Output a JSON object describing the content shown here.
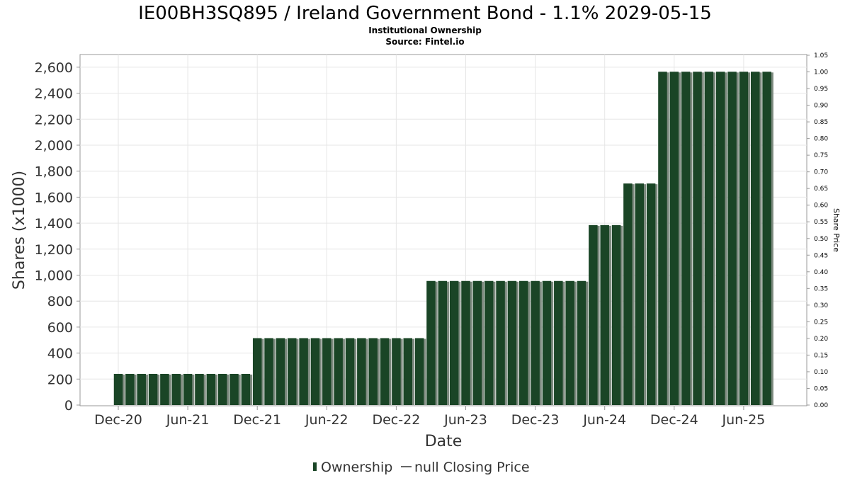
{
  "chart_data": {
    "type": "bar",
    "title": "IE00BH3SQ895 / Ireland Government Bond - 1.1% 2029-05-15",
    "subtitle_line1": "Institutional Ownership",
    "subtitle_line2": "Source: Fintel.io",
    "xlabel": "Date",
    "ylabel": "Shares (x1000)",
    "y2label": "Share Price",
    "ylim": [
      0,
      2700
    ],
    "y2lim": [
      0,
      1.05
    ],
    "y_ticks": [
      "0",
      "200",
      "400",
      "600",
      "800",
      "1,000",
      "1,200",
      "1,400",
      "1,600",
      "1,800",
      "2,000",
      "2,200",
      "2,400",
      "2,600"
    ],
    "y2_ticks": [
      "0.00",
      "0.05",
      "0.10",
      "0.15",
      "0.20",
      "0.25",
      "0.30",
      "0.35",
      "0.40",
      "0.45",
      "0.50",
      "0.55",
      "0.60",
      "0.65",
      "0.70",
      "0.75",
      "0.80",
      "0.85",
      "0.90",
      "0.95",
      "1.00",
      "1.05"
    ],
    "x_ticks": [
      "Dec-20",
      "Jun-21",
      "Dec-21",
      "Jun-22",
      "Dec-22",
      "Jun-23",
      "Dec-23",
      "Jun-24",
      "Dec-24",
      "Jun-25"
    ],
    "grid": true,
    "legend_position": "bottom-center",
    "series": [
      {
        "name": "Ownership",
        "color": "#1a4526",
        "x": [
          "2020-12-01",
          "2021-01-01",
          "2021-02-01",
          "2021-03-01",
          "2021-04-01",
          "2021-05-01",
          "2021-06-01",
          "2021-07-01",
          "2021-08-01",
          "2021-09-01",
          "2021-10-01",
          "2021-11-01",
          "2021-12-01",
          "2022-01-01",
          "2022-02-01",
          "2022-03-01",
          "2022-04-01",
          "2022-05-01",
          "2022-06-01",
          "2022-07-01",
          "2022-08-01",
          "2022-09-01",
          "2022-10-01",
          "2022-11-01",
          "2022-12-01",
          "2023-01-01",
          "2023-02-01",
          "2023-03-01",
          "2023-04-01",
          "2023-05-01",
          "2023-06-01",
          "2023-07-01",
          "2023-08-01",
          "2023-09-01",
          "2023-10-01",
          "2023-11-01",
          "2023-12-01",
          "2024-01-01",
          "2024-02-01",
          "2024-03-01",
          "2024-04-01",
          "2024-05-01",
          "2024-06-01",
          "2024-07-01",
          "2024-08-01",
          "2024-09-01",
          "2024-10-01",
          "2024-11-01",
          "2024-12-01",
          "2025-01-01",
          "2025-02-01",
          "2025-03-01",
          "2025-04-01",
          "2025-05-01",
          "2025-06-01",
          "2025-07-01",
          "2025-08-01"
        ],
        "values": [
          240,
          240,
          240,
          240,
          240,
          240,
          240,
          240,
          240,
          240,
          240,
          240,
          515,
          515,
          515,
          515,
          515,
          515,
          515,
          515,
          515,
          515,
          515,
          515,
          515,
          515,
          515,
          955,
          955,
          955,
          955,
          955,
          955,
          955,
          955,
          955,
          955,
          955,
          955,
          955,
          955,
          1385,
          1385,
          1385,
          1705,
          1705,
          1705,
          2565,
          2565,
          2565,
          2565,
          2565,
          2565,
          2565,
          2565,
          2565,
          2565
        ]
      },
      {
        "name": "null Closing Price",
        "color": "#333333",
        "values": []
      }
    ]
  }
}
